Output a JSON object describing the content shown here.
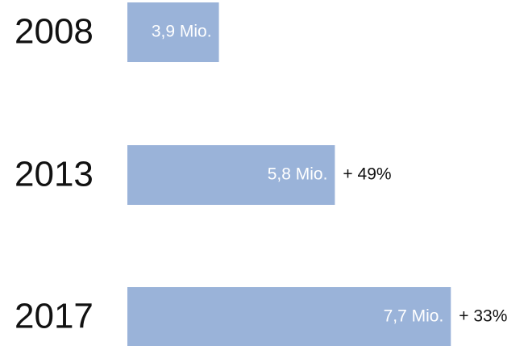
{
  "chart_data": {
    "type": "bar",
    "orientation": "horizontal",
    "categories": [
      "2008",
      "2013",
      "2017"
    ],
    "values": [
      3.9,
      5.8,
      7.7
    ],
    "value_labels": [
      "3,9 Mio.",
      "5,8 Mio.",
      "7,7 Mio."
    ],
    "change_labels": [
      null,
      "+ 49%",
      "+ 33%"
    ],
    "color": "#9ab3d9",
    "xlim": [
      2.4,
      8.0
    ]
  }
}
